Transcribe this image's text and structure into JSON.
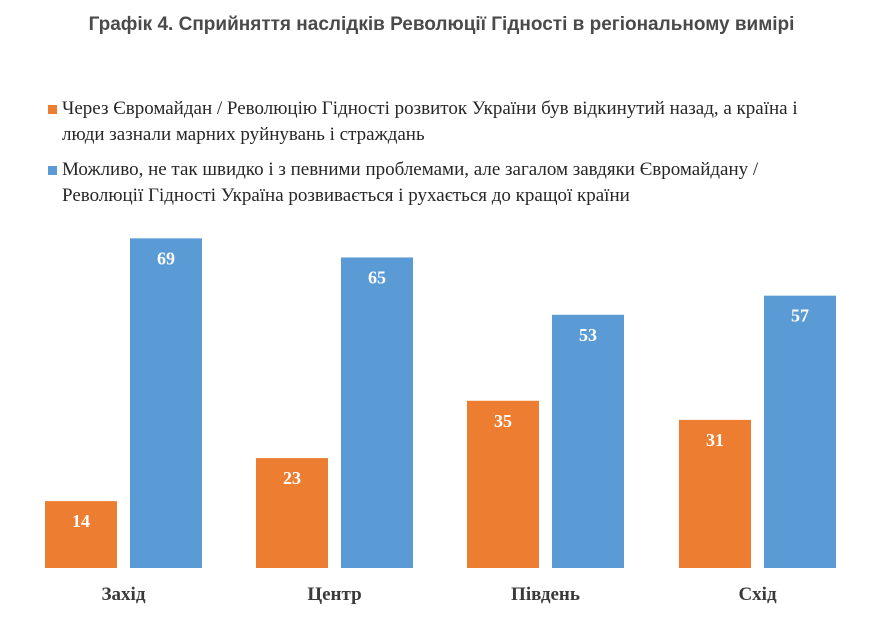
{
  "chart_data": {
    "type": "bar",
    "title": "Графік 4. Сприйняття наслідків Революції Гідності в регіональному вимірі",
    "categories": [
      "Захід",
      "Центр",
      "Південь",
      "Схід"
    ],
    "series": [
      {
        "name": "Через Євромайдан / Революцію Гідності розвиток України був відкинутий назад, а країна і люди зазнали марних руйнувань і страждань",
        "color": "#ED7D31",
        "values": [
          14,
          23,
          35,
          31
        ]
      },
      {
        "name": "Можливо, не так швидко і з певними проблемами, але загалом завдяки Євромайдану / Революції Гідності Україна розвивається і рухається до кращої країни",
        "color": "#5B9BD5",
        "values": [
          69,
          65,
          53,
          57
        ]
      }
    ],
    "ylim": [
      0,
      72
    ],
    "grid": false,
    "legend_position": "top"
  }
}
